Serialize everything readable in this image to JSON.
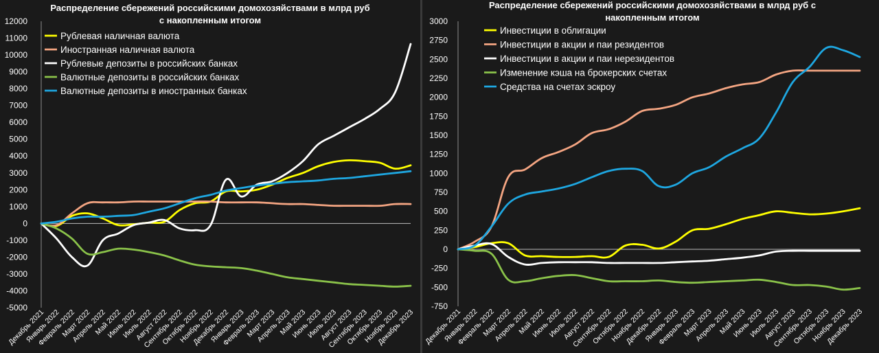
{
  "chart_data": [
    {
      "type": "line",
      "title": [
        "Распределение сбережений российскими домохозяйствами в млрд руб",
        "с накопленным итогом"
      ],
      "ylim": [
        -5000,
        12000
      ],
      "yticks": [
        12000,
        11000,
        10000,
        9000,
        8000,
        7000,
        6000,
        5000,
        4000,
        3000,
        2000,
        1000,
        0,
        -1000,
        -2000,
        -3000,
        -4000,
        -5000
      ],
      "categories": [
        "Декабрь 2021",
        "Январь 2022",
        "Февраль 2022",
        "Март 2022",
        "Апрель 2022",
        "Май 2022",
        "Июнь 2022",
        "Июль 2022",
        "Август 2022",
        "Сентябрь 2022",
        "Октябрь 2022",
        "Ноябрь 2022",
        "Декабрь 2022",
        "Январь 2023",
        "Февраль 2023",
        "Март 2023",
        "Апрель 2023",
        "Май 2023",
        "Июнь 2023",
        "Июль 2023",
        "Август 2023",
        "Сентябрь 2023",
        "Октябрь 2023",
        "Ноябрь 2023",
        "Декабрь 2023"
      ],
      "legend_position": "top-left",
      "grid": false,
      "series": [
        {
          "name": "Рублевая наличная валюта",
          "color": "#ffff00",
          "values": [
            0,
            -150,
            450,
            600,
            300,
            -100,
            -50,
            50,
            100,
            800,
            1200,
            1300,
            1900,
            1900,
            2000,
            2300,
            2700,
            3000,
            3400,
            3650,
            3750,
            3700,
            3600,
            3250,
            3450
          ]
        },
        {
          "name": "Иностранная наличная валюта",
          "color": "#f4a582",
          "values": [
            0,
            -100,
            600,
            1200,
            1250,
            1250,
            1300,
            1300,
            1300,
            1300,
            1300,
            1300,
            1250,
            1250,
            1250,
            1200,
            1150,
            1150,
            1100,
            1050,
            1050,
            1050,
            1050,
            1150,
            1150
          ]
        },
        {
          "name": "Рублевые депозиты в российских банках",
          "color": "#ffffff",
          "values": [
            0,
            -900,
            -2000,
            -2500,
            -1000,
            -600,
            -100,
            50,
            200,
            -300,
            -400,
            -100,
            2600,
            1600,
            2300,
            2500,
            3000,
            3700,
            4700,
            5200,
            5700,
            6200,
            6800,
            7800,
            10650
          ]
        },
        {
          "name": "Валютные депозиты в российских банках",
          "color": "#8bc34a",
          "values": [
            0,
            -300,
            -900,
            -1800,
            -1700,
            -1500,
            -1550,
            -1700,
            -1900,
            -2200,
            -2450,
            -2550,
            -2600,
            -2650,
            -2800,
            -3000,
            -3200,
            -3300,
            -3400,
            -3500,
            -3600,
            -3650,
            -3700,
            -3750,
            -3700
          ]
        },
        {
          "name": "Валютные депозиты в иностранных банках",
          "color": "#1ea7e1",
          "values": [
            0,
            100,
            300,
            400,
            400,
            450,
            500,
            700,
            900,
            1200,
            1500,
            1700,
            1950,
            2100,
            2250,
            2350,
            2450,
            2500,
            2550,
            2650,
            2700,
            2800,
            2900,
            3000,
            3100
          ]
        }
      ]
    },
    {
      "type": "line",
      "title": [
        "Распределение сбережений российскими домохозяйствами в млрд руб с",
        "накопленным итогом"
      ],
      "ylim": [
        -750,
        3000
      ],
      "yticks": [
        3000,
        2750,
        2500,
        2250,
        2000,
        1750,
        1500,
        1250,
        1000,
        750,
        500,
        250,
        0,
        -250,
        -500,
        -750
      ],
      "categories": [
        "Декабрь 2021",
        "Январь 2022",
        "Февраль 2022",
        "Март 2022",
        "Апрель 2022",
        "Май 2022",
        "Июнь 2022",
        "Июль 2022",
        "Август 2022",
        "Сентябрь 2022",
        "Октябрь 2022",
        "Ноябрь 2022",
        "Декабрь 2022",
        "Январь 2023",
        "Февраль 2023",
        "Март 2023",
        "Апрель 2023",
        "Май 2023",
        "Июнь 2023",
        "Июль 2023",
        "Август 2023",
        "Сентябрь 2023",
        "Октябрь 2023",
        "Ноябрь 2023",
        "Декабрь 2023"
      ],
      "legend_position": "top-left",
      "grid": false,
      "series": [
        {
          "name": "Инвестиции в облигации",
          "color": "#ffff00",
          "values": [
            0,
            30,
            80,
            80,
            -80,
            -90,
            -100,
            -100,
            -90,
            -100,
            50,
            60,
            10,
            100,
            250,
            270,
            330,
            400,
            450,
            500,
            480,
            460,
            470,
            500,
            540
          ]
        },
        {
          "name": "Инвестиции в акции и паи резидентов",
          "color": "#f4a582",
          "values": [
            0,
            100,
            300,
            950,
            1050,
            1200,
            1280,
            1380,
            1530,
            1580,
            1680,
            1820,
            1850,
            1900,
            2000,
            2050,
            2120,
            2170,
            2200,
            2300,
            2350,
            2350,
            2350,
            2350,
            2350
          ]
        },
        {
          "name": "Инвестиции в акции и паи нерезидентов",
          "color": "#ffffff",
          "values": [
            0,
            50,
            70,
            -100,
            -200,
            -180,
            -170,
            -170,
            -170,
            -180,
            -180,
            -180,
            -180,
            -170,
            -160,
            -150,
            -130,
            -110,
            -80,
            -30,
            -20,
            -20,
            -20,
            -20,
            -20
          ]
        },
        {
          "name": "Изменение кэша на брокерских счетах",
          "color": "#8bc34a",
          "values": [
            0,
            -20,
            -60,
            -400,
            -420,
            -380,
            -350,
            -340,
            -380,
            -420,
            -420,
            -420,
            -410,
            -430,
            -440,
            -430,
            -420,
            -410,
            -400,
            -430,
            -470,
            -470,
            -490,
            -530,
            -510
          ]
        },
        {
          "name": "Средства на счетах эскроу",
          "color": "#1ea7e1",
          "values": [
            0,
            50,
            300,
            600,
            720,
            760,
            800,
            860,
            950,
            1030,
            1060,
            1030,
            830,
            850,
            1000,
            1080,
            1220,
            1330,
            1460,
            1800,
            2200,
            2400,
            2650,
            2620,
            2530
          ]
        }
      ]
    }
  ]
}
